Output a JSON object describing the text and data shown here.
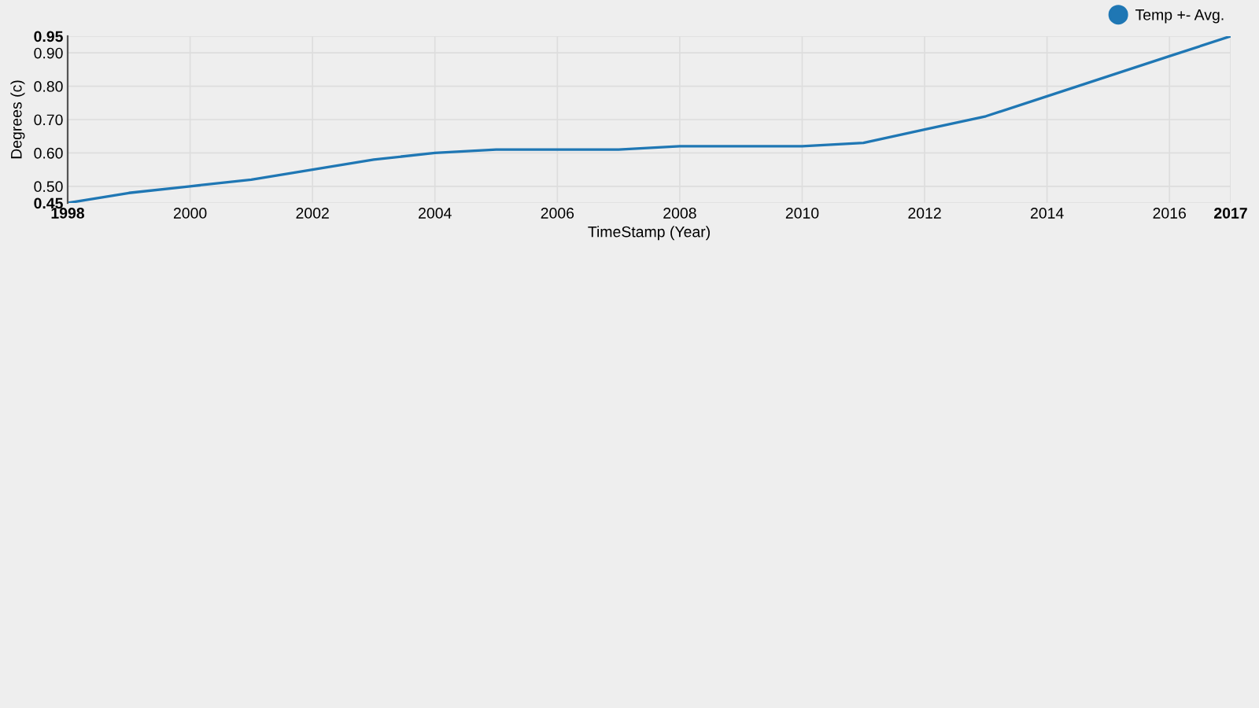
{
  "chart_data": {
    "type": "line",
    "xlabel": "TimeStamp (Year)",
    "ylabel": "Degrees (c)",
    "x": [
      1998,
      1999,
      2000,
      2001,
      2002,
      2003,
      2004,
      2005,
      2006,
      2007,
      2008,
      2009,
      2010,
      2011,
      2012,
      2013,
      2014,
      2015,
      2016,
      2017
    ],
    "series": [
      {
        "name": "Temp +- Avg.",
        "color": "#1f77b4",
        "values": [
          0.45,
          0.48,
          0.5,
          0.52,
          0.55,
          0.58,
          0.6,
          0.61,
          0.61,
          0.61,
          0.62,
          0.62,
          0.62,
          0.63,
          0.67,
          0.71,
          0.77,
          0.83,
          0.89,
          0.95
        ]
      }
    ],
    "xlim": [
      1998,
      2017
    ],
    "xticks": [
      1998,
      2000,
      2002,
      2004,
      2006,
      2008,
      2010,
      2012,
      2014,
      2016,
      2017
    ],
    "ylim": [
      0.45,
      0.95
    ],
    "yticks": [
      {
        "value": 0.45,
        "label": "0.45"
      },
      {
        "value": 0.5,
        "label": "0.50"
      },
      {
        "value": 0.6,
        "label": "0.60"
      },
      {
        "value": 0.7,
        "label": "0.70"
      },
      {
        "value": 0.8,
        "label": "0.80"
      },
      {
        "value": 0.9,
        "label": "0.90"
      },
      {
        "value": 0.95,
        "label": "0.95"
      }
    ],
    "grid": true,
    "legend": "top right"
  }
}
